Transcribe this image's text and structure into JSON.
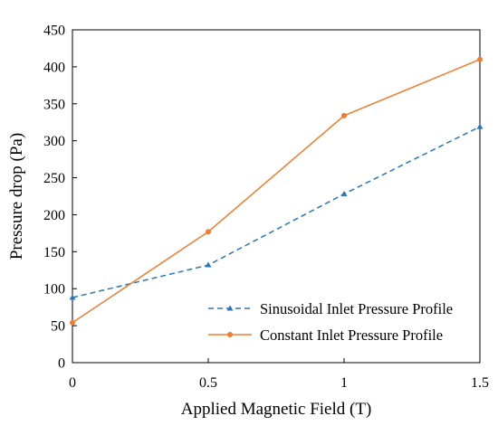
{
  "chart_data": {
    "type": "line",
    "title": "",
    "xlabel": "Applied Magnetic Field (T)",
    "ylabel": "Pressure drop (Pa)",
    "xlim": [
      0,
      1.5
    ],
    "ylim": [
      0,
      450
    ],
    "x_ticks": [
      0,
      0.5,
      1,
      1.5
    ],
    "x_tick_labels": [
      "0",
      "0.5",
      "1",
      "1.5"
    ],
    "y_ticks": [
      0,
      50,
      100,
      150,
      200,
      250,
      300,
      350,
      400,
      450
    ],
    "y_tick_labels": [
      "0",
      "50",
      "100",
      "150",
      "200",
      "250",
      "300",
      "350",
      "400",
      "450"
    ],
    "grid": false,
    "legend_position": "bottom-right",
    "series": [
      {
        "name": "Sinusoidal Inlet Pressure Profile",
        "color": "#2E75B6",
        "line_style": "dashed",
        "marker": "triangle",
        "x": [
          0,
          0.5,
          1,
          1.5
        ],
        "y": [
          88,
          132,
          228,
          319
        ]
      },
      {
        "name": "Constant Inlet Pressure Profile",
        "color": "#ED7D31",
        "line_style": "solid",
        "marker": "circle",
        "x": [
          0,
          0.5,
          1,
          1.5
        ],
        "y": [
          54,
          177,
          334,
          410
        ]
      }
    ]
  }
}
